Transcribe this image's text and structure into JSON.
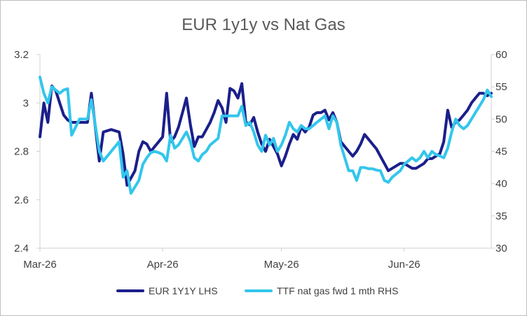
{
  "chart_data": {
    "type": "line",
    "title": "EUR 1y1y vs Nat Gas",
    "x_tick_labels": [
      "Mar-26",
      "Apr-26",
      "May-26",
      "Jun-26"
    ],
    "x_ticks_day_index": [
      0,
      31,
      61,
      92
    ],
    "xlim_day_index": [
      0,
      114
    ],
    "y_left": {
      "ylim": [
        2.4,
        3.2
      ],
      "ticks": [
        2.4,
        2.6,
        2.8,
        3.0,
        3.2
      ],
      "tick_labels": [
        "2.4",
        "2.6",
        "2.8",
        "3",
        "3.2"
      ]
    },
    "y_right": {
      "ylim": [
        30,
        60
      ],
      "ticks": [
        30,
        35,
        40,
        45,
        50,
        55,
        60
      ],
      "tick_labels": [
        "30",
        "35",
        "40",
        "45",
        "50",
        "55",
        "60"
      ]
    },
    "legend_position": "bottom",
    "grid": false,
    "series": [
      {
        "name": "EUR 1Y1Y LHS",
        "axis": "left",
        "color": "#1b1f8a",
        "x_day_index": [
          0,
          1,
          2,
          3,
          4,
          5,
          6,
          7,
          8,
          10,
          12,
          13,
          15,
          16,
          18,
          20,
          21,
          22,
          23,
          24,
          25,
          26,
          27,
          28,
          29,
          30,
          31,
          32,
          33,
          34,
          35,
          36,
          37,
          38,
          39,
          40,
          41,
          42,
          43,
          44,
          45,
          46,
          47,
          48,
          49,
          50,
          51,
          52,
          53,
          54,
          55,
          56,
          57,
          58,
          59,
          60,
          61,
          62,
          63,
          64,
          65,
          66,
          67,
          68,
          69,
          70,
          71,
          72,
          73,
          74,
          75,
          76,
          77,
          78,
          79,
          80,
          81,
          82,
          83,
          84,
          85,
          86,
          87,
          88,
          89,
          90,
          91,
          92,
          93,
          94,
          95,
          96,
          97,
          98,
          99,
          100,
          101,
          102,
          103,
          104,
          105,
          106,
          107,
          108,
          109,
          110,
          111,
          112,
          113,
          114
        ],
        "values": [
          2.86,
          3.0,
          2.92,
          3.07,
          3.05,
          3.0,
          2.95,
          2.93,
          2.92,
          2.92,
          2.92,
          3.04,
          2.76,
          2.88,
          2.89,
          2.88,
          2.79,
          2.66,
          2.69,
          2.72,
          2.8,
          2.84,
          2.83,
          2.8,
          2.82,
          2.84,
          2.86,
          3.04,
          2.84,
          2.86,
          2.9,
          2.96,
          3.02,
          2.91,
          2.82,
          2.86,
          2.86,
          2.89,
          2.92,
          2.96,
          3.01,
          2.98,
          2.92,
          3.06,
          3.05,
          3.02,
          3.08,
          2.92,
          2.91,
          2.94,
          2.88,
          2.83,
          2.8,
          2.85,
          2.82,
          2.79,
          2.74,
          2.78,
          2.83,
          2.87,
          2.85,
          2.9,
          2.88,
          2.9,
          2.95,
          2.96,
          2.96,
          2.97,
          2.93,
          2.96,
          2.92,
          2.84,
          2.82,
          2.8,
          2.78,
          2.8,
          2.83,
          2.87,
          2.85,
          2.83,
          2.81,
          2.78,
          2.75,
          2.72,
          2.73,
          2.74,
          2.75,
          2.75,
          2.74,
          2.73,
          2.73,
          2.74,
          2.75,
          2.77,
          2.77,
          2.78,
          2.79,
          2.84,
          2.97,
          2.9,
          2.92,
          2.93,
          2.95,
          2.97,
          3.0,
          3.02,
          3.04,
          3.04,
          3.03,
          3.04
        ]
      },
      {
        "name": "TTF nat gas fwd 1 mth RHS",
        "axis": "right",
        "color": "#33c6ec",
        "x_day_index": [
          0,
          1,
          2,
          3,
          4,
          5,
          6,
          7,
          8,
          10,
          12,
          13,
          15,
          16,
          18,
          20,
          21,
          22,
          23,
          24,
          25,
          26,
          27,
          28,
          29,
          30,
          31,
          32,
          33,
          34,
          35,
          36,
          37,
          38,
          39,
          40,
          41,
          42,
          43,
          44,
          45,
          46,
          47,
          48,
          49,
          50,
          51,
          52,
          53,
          54,
          55,
          56,
          57,
          58,
          59,
          60,
          61,
          62,
          63,
          64,
          65,
          66,
          67,
          68,
          69,
          70,
          71,
          72,
          73,
          74,
          75,
          76,
          77,
          78,
          79,
          80,
          81,
          82,
          83,
          84,
          85,
          86,
          87,
          88,
          89,
          90,
          91,
          92,
          93,
          94,
          95,
          96,
          97,
          98,
          99,
          100,
          101,
          102,
          103,
          104,
          105,
          106,
          107,
          108,
          109,
          110,
          111,
          112,
          113,
          114
        ],
        "values": [
          56.5,
          54.0,
          52.5,
          55.0,
          54.5,
          54.0,
          54.5,
          54.7,
          47.5,
          50.0,
          50.0,
          53.0,
          45.0,
          43.5,
          45.0,
          46.5,
          41.0,
          42.0,
          38.5,
          39.5,
          40.5,
          43.0,
          44.0,
          44.8,
          45.0,
          44.8,
          44.5,
          43.5,
          47.5,
          45.5,
          46.0,
          47.0,
          48.0,
          46.5,
          44.0,
          43.5,
          44.5,
          45.0,
          46.0,
          46.5,
          47.0,
          50.5,
          50.5,
          50.5,
          50.5,
          50.5,
          52.0,
          49.0,
          49.5,
          48.0,
          46.0,
          45.0,
          47.5,
          46.0,
          47.0,
          45.0,
          46.0,
          47.5,
          49.5,
          48.5,
          48.0,
          49.0,
          48.5,
          48.5,
          49.0,
          49.5,
          50.0,
          50.5,
          48.5,
          50.5,
          49.5,
          46.0,
          44.0,
          42.0,
          42.0,
          40.5,
          42.5,
          42.5,
          42.3,
          42.3,
          42.1,
          42.0,
          40.5,
          40.2,
          41.0,
          41.5,
          42.0,
          43.0,
          43.5,
          44.0,
          43.5,
          44.0,
          45.0,
          44.0,
          45.0,
          44.5,
          44.3,
          44.0,
          45.5,
          48.0,
          50.0,
          49.0,
          48.5,
          49.0,
          50.0,
          51.0,
          52.0,
          53.0,
          54.5,
          53.5
        ]
      }
    ]
  }
}
